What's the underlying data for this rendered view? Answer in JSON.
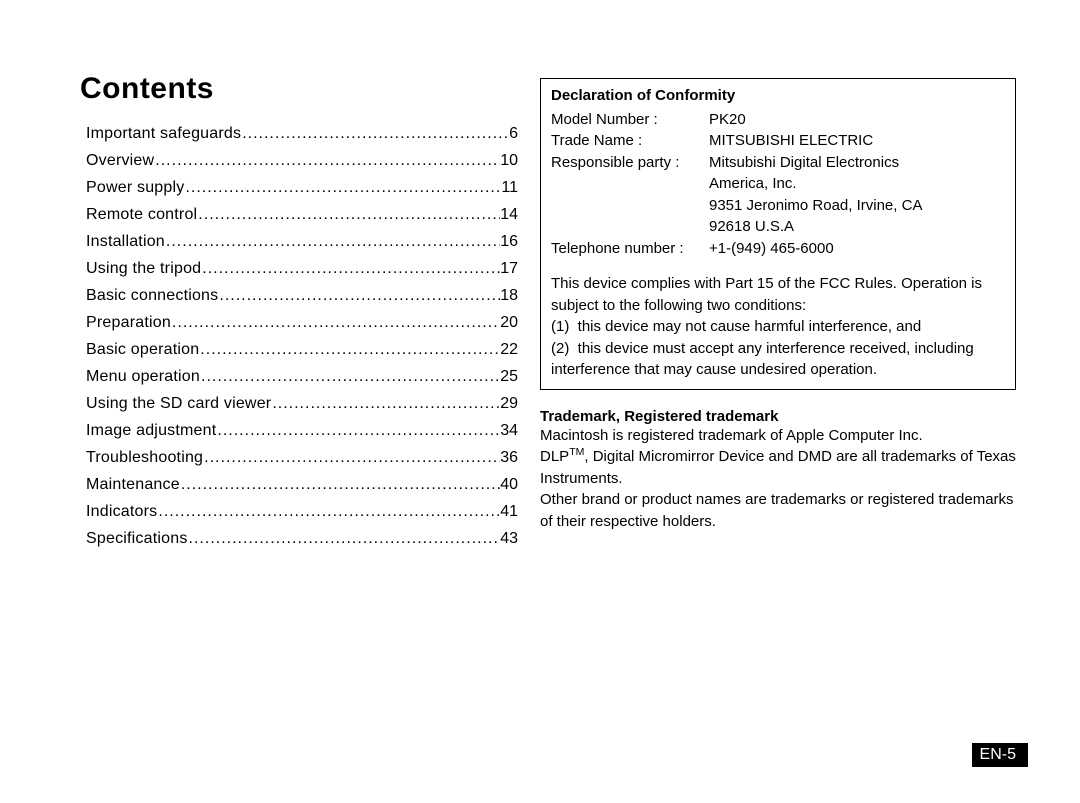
{
  "title": "Contents",
  "toc": [
    {
      "label": "Important safeguards",
      "page": "6"
    },
    {
      "label": "Overview",
      "page": "10"
    },
    {
      "label": "Power supply",
      "page": "11"
    },
    {
      "label": "Remote control",
      "page": "14"
    },
    {
      "label": "Installation",
      "page": "16"
    },
    {
      "label": "Using the tripod",
      "page": "17"
    },
    {
      "label": "Basic connections",
      "page": "18"
    },
    {
      "label": "Preparation",
      "page": "20"
    },
    {
      "label": "Basic operation",
      "page": "22"
    },
    {
      "label": "Menu operation",
      "page": "25"
    },
    {
      "label": "Using the SD card viewer",
      "page": "29"
    },
    {
      "label": "Image adjustment",
      "page": "34"
    },
    {
      "label": "Troubleshooting",
      "page": "36"
    },
    {
      "label": "Maintenance",
      "page": "40"
    },
    {
      "label": "Indicators",
      "page": "41"
    },
    {
      "label": "Specifications",
      "page": "43"
    }
  ],
  "declaration": {
    "heading": "Declaration of Conformity",
    "rows": [
      {
        "label": "Model Number :",
        "values": [
          "PK20"
        ]
      },
      {
        "label": "Trade Name :",
        "values": [
          "MITSUBISHI ELECTRIC"
        ]
      },
      {
        "label": "Responsible party :",
        "values": [
          "Mitsubishi Digital Electronics",
          "America, Inc.",
          "9351 Jeronimo Road, Irvine, CA",
          "92618 U.S.A"
        ]
      },
      {
        "label": "Telephone number :",
        "values": [
          "+1-(949) 465-6000"
        ]
      }
    ],
    "para": [
      "This device complies with Part 15 of the FCC Rules. Operation is subject to the following two conditions:",
      "(1)  this device may not cause harmful interference, and",
      "(2)  this device must accept any interference received, including interference that may cause undesired operation."
    ]
  },
  "trademark": {
    "heading": "Trademark, Registered trademark",
    "body_pre": "Macintosh is registered trademark of Apple Computer Inc.\nDLP",
    "tm_sup": "TM",
    "body_post": ", Digital Micromirror Device and DMD are all trademarks of Texas Instruments.\nOther brand or product names are trademarks or registered trademarks of their respective holders."
  },
  "page_number": "EN-5"
}
